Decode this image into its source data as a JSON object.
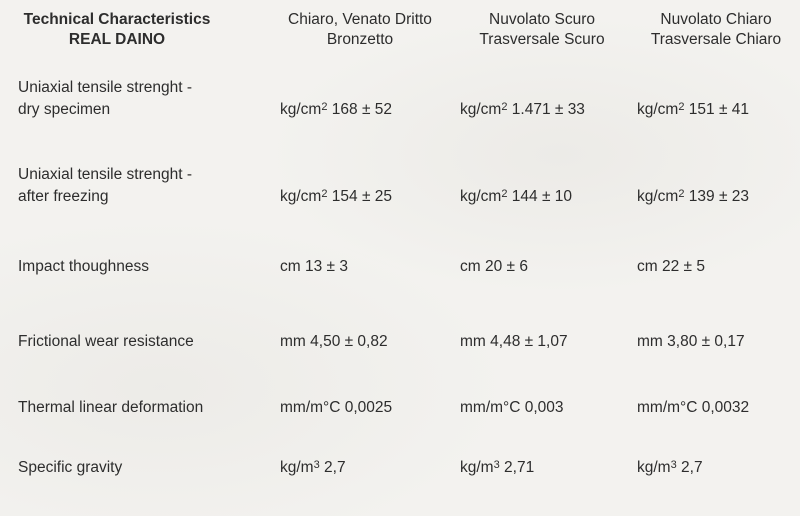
{
  "page": {
    "background_color": "#f3f2ef",
    "text_color": "#2d2d2d"
  },
  "table": {
    "header": {
      "title_line1": "Technical Characteristics",
      "title_line2": "REAL DAINO",
      "columns": [
        {
          "line1": "Chiaro, Venato Dritto",
          "line2": "Bronzetto"
        },
        {
          "line1": "Nuvolato Scuro",
          "line2": "Trasversale Scuro"
        },
        {
          "line1": "Nuvolato Chiaro",
          "line2": "Trasversale Chiaro"
        }
      ]
    },
    "rows": [
      {
        "label_line1": "Uniaxial tensile strenght -",
        "label_line2": "dry specimen",
        "values": [
          {
            "unit": "kg/cm",
            "sup": "2",
            "value": "168 ± 52"
          },
          {
            "unit": "kg/cm",
            "sup": "2",
            "value": "1.471 ± 33"
          },
          {
            "unit": "kg/cm",
            "sup": "2",
            "value": "151 ± 41"
          }
        ]
      },
      {
        "label_line1": "Uniaxial tensile strenght -",
        "label_line2": "after freezing",
        "values": [
          {
            "unit": "kg/cm",
            "sup": "2",
            "value": "154 ± 25"
          },
          {
            "unit": "kg/cm",
            "sup": "2",
            "value": "144 ± 10"
          },
          {
            "unit": "kg/cm",
            "sup": "2",
            "value": "139 ± 23"
          }
        ]
      },
      {
        "label_line1": "Impact thoughness",
        "label_line2": "",
        "values": [
          {
            "unit": "cm",
            "sup": "",
            "value": "13 ± 3"
          },
          {
            "unit": "cm",
            "sup": "",
            "value": "20 ± 6"
          },
          {
            "unit": "cm",
            "sup": "",
            "value": "22 ± 5"
          }
        ]
      },
      {
        "label_line1": "Frictional wear resistance",
        "label_line2": "",
        "values": [
          {
            "unit": "mm",
            "sup": "",
            "value": "4,50 ± 0,82"
          },
          {
            "unit": "mm",
            "sup": "",
            "value": "4,48 ± 1,07"
          },
          {
            "unit": "mm",
            "sup": "",
            "value": "3,80 ± 0,17"
          }
        ]
      },
      {
        "label_line1": "Thermal linear deformation",
        "label_line2": "",
        "values": [
          {
            "unit": "mm/m°C",
            "sup": "",
            "value": "0,0025"
          },
          {
            "unit": "mm/m°C",
            "sup": "",
            "value": "0,003"
          },
          {
            "unit": "mm/m°C",
            "sup": "",
            "value": "0,0032"
          }
        ]
      },
      {
        "label_line1": "Specific gravity",
        "label_line2": "",
        "values": [
          {
            "unit": "kg/m",
            "sup": "3",
            "value": "2,7"
          },
          {
            "unit": "kg/m",
            "sup": "3",
            "value": "2,71"
          },
          {
            "unit": "kg/m",
            "sup": "3",
            "value": "2,7"
          }
        ]
      }
    ]
  }
}
